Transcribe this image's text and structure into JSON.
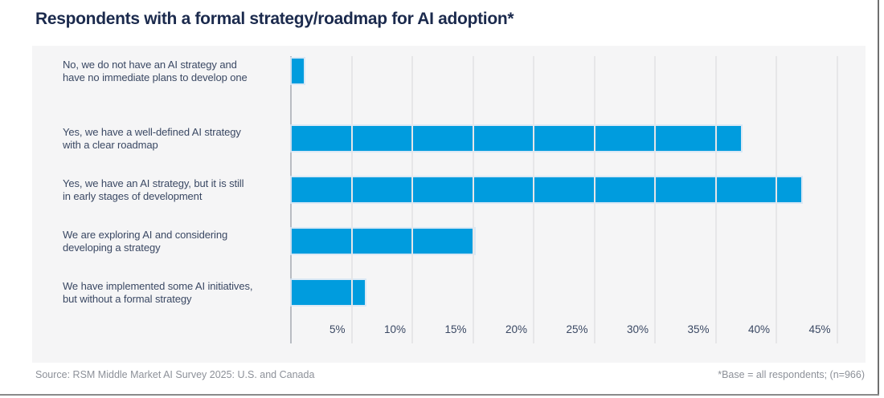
{
  "chart_data": {
    "type": "bar",
    "orientation": "horizontal",
    "title": "Respondents with a formal strategy/roadmap for AI adoption*",
    "categories": [
      "Yes, we have a well-defined AI strategy with a clear roadmap",
      "Yes, we have an AI strategy, but it is still in early stages of development",
      "We are exploring AI and considering developing a strategy",
      "We have implemented some AI initiatives, but without a formal strategy",
      "No, we do not have an AI strategy and have no immediate plans to develop one"
    ],
    "category_lines": [
      [
        "Yes, we have a well-defined AI strategy",
        "with a clear roadmap"
      ],
      [
        "Yes, we have an AI strategy, but it is still",
        "in early stages of development"
      ],
      [
        "We are exploring AI and considering",
        "developing a strategy"
      ],
      [
        "We have implemented some AI initiatives,",
        "but without a formal strategy"
      ],
      [
        "No, we do not have an AI strategy and",
        "have no immediate plans to develop one"
      ]
    ],
    "values": [
      37,
      42,
      15,
      6,
      1
    ],
    "value_unit": "%",
    "xlim": [
      0,
      46
    ],
    "x_ticks": [
      5,
      10,
      15,
      20,
      25,
      30,
      35,
      40,
      45
    ],
    "x_tick_labels": [
      "5%",
      "10%",
      "15%",
      "20%",
      "25%",
      "30%",
      "35%",
      "40%",
      "45%"
    ],
    "grid": "vertical",
    "legend": "none"
  },
  "footer": {
    "source": "Source: RSM Middle Market AI Survey 2025: U.S. and Canada",
    "base_note": "*Base = all respondents; (n=966)"
  },
  "colors": {
    "bar": "#009CDE",
    "title_text": "#1B2A4D",
    "label_text": "#3A4863",
    "panel_bg": "#F5F5F6",
    "gridline": "#E6E6E8",
    "axis_line": "#B9BCC2",
    "footer_text": "#8D9199"
  }
}
